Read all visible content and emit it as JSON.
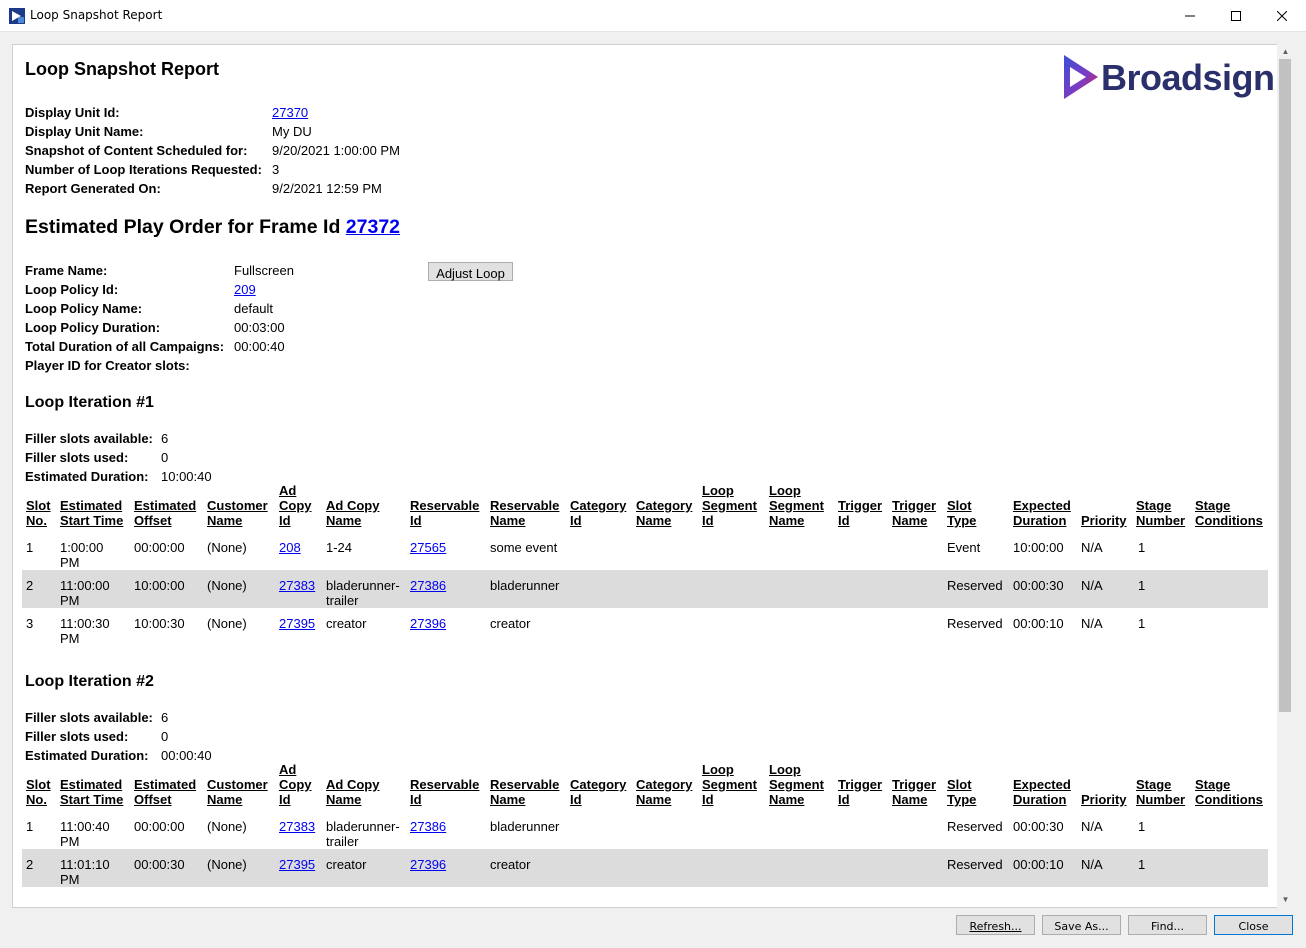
{
  "window": {
    "title": "Loop Snapshot Report",
    "minimize": "–",
    "maximize": "☐",
    "close": "✕"
  },
  "report": {
    "title": "Loop Snapshot Report",
    "brand": "Broadsign",
    "fields": [
      {
        "label": "Display Unit Id:",
        "value": "27370",
        "link": true
      },
      {
        "label": "Display Unit Name:",
        "value": "My DU",
        "link": false
      },
      {
        "label": "Snapshot of Content Scheduled for:",
        "value": "9/20/2021 1:00:00 PM",
        "link": false
      },
      {
        "label": "Number of Loop Iterations Requested:",
        "value": "3",
        "link": false
      },
      {
        "label": "Report Generated On:",
        "value": "9/2/2021 12:59 PM",
        "link": false
      }
    ]
  },
  "frame": {
    "heading_prefix": "Estimated Play Order for Frame Id",
    "frame_id": "27372",
    "adjust_button": "Adjust Loop",
    "fields": [
      {
        "label": "Frame Name:",
        "value": "Fullscreen",
        "link": false
      },
      {
        "label": "Loop Policy Id:",
        "value": "209",
        "link": true
      },
      {
        "label": "Loop Policy Name:",
        "value": "default",
        "link": false
      },
      {
        "label": "Loop Policy Duration:",
        "value": "00:03:00",
        "link": false
      },
      {
        "label": "Total Duration of all Campaigns:",
        "value": "00:00:40",
        "link": false
      },
      {
        "label": "Player ID for Creator slots:",
        "value": "",
        "link": false
      }
    ]
  },
  "columns": [
    [
      "Slot",
      "No."
    ],
    [
      "Estimated",
      "Start Time"
    ],
    [
      "Estimated",
      "Offset"
    ],
    [
      "Customer",
      "Name"
    ],
    [
      "Ad",
      "Copy",
      "Id"
    ],
    [
      "Ad Copy",
      "Name"
    ],
    [
      "Reservable",
      "Id"
    ],
    [
      "Reservable",
      "Name"
    ],
    [
      "Category",
      "Id"
    ],
    [
      "Category",
      "Name"
    ],
    [
      "Loop",
      "Segment",
      "Id"
    ],
    [
      "Loop",
      "Segment",
      "Name"
    ],
    [
      "Trigger",
      "Id"
    ],
    [
      "Trigger",
      "Name"
    ],
    [
      "Slot",
      "Type"
    ],
    [
      "Expected",
      "Duration"
    ],
    [
      "Priority"
    ],
    [
      "Stage",
      "Number"
    ],
    [
      "Stage",
      "Conditions"
    ]
  ],
  "iterations": [
    {
      "title": "Loop Iteration #1",
      "stats": [
        {
          "label": "Filler slots available:",
          "value": "6"
        },
        {
          "label": "Filler slots used:",
          "value": "0"
        },
        {
          "label": "Estimated Duration:",
          "value": "10:00:40"
        }
      ],
      "rows": [
        {
          "slot": "1",
          "start": [
            "1:00:00",
            "PM"
          ],
          "offset": "00:00:00",
          "customer": "(None)",
          "adcopy_id": "208",
          "adcopy_name": [
            "1-24"
          ],
          "res_id": "27565",
          "res_name": "some event",
          "slot_type": "Event",
          "duration": "10:00:00",
          "priority": "N/A",
          "stage": "1"
        },
        {
          "slot": "2",
          "start": [
            "11:00:00",
            "PM"
          ],
          "offset": "10:00:00",
          "customer": "(None)",
          "adcopy_id": "27383",
          "adcopy_name": [
            "bladerunner-",
            "trailer"
          ],
          "res_id": "27386",
          "res_name": "bladerunner",
          "slot_type": "Reserved",
          "duration": "00:00:30",
          "priority": "N/A",
          "stage": "1"
        },
        {
          "slot": "3",
          "start": [
            "11:00:30",
            "PM"
          ],
          "offset": "10:00:30",
          "customer": "(None)",
          "adcopy_id": "27395",
          "adcopy_name": [
            "creator"
          ],
          "res_id": "27396",
          "res_name": "creator",
          "slot_type": "Reserved",
          "duration": "00:00:10",
          "priority": "N/A",
          "stage": "1"
        }
      ]
    },
    {
      "title": "Loop Iteration #2",
      "stats": [
        {
          "label": "Filler slots available:",
          "value": "6"
        },
        {
          "label": "Filler slots used:",
          "value": "0"
        },
        {
          "label": "Estimated Duration:",
          "value": "00:00:40"
        }
      ],
      "rows": [
        {
          "slot": "1",
          "start": [
            "11:00:40",
            "PM"
          ],
          "offset": "00:00:00",
          "customer": "(None)",
          "adcopy_id": "27383",
          "adcopy_name": [
            "bladerunner-",
            "trailer"
          ],
          "res_id": "27386",
          "res_name": "bladerunner",
          "slot_type": "Reserved",
          "duration": "00:00:30",
          "priority": "N/A",
          "stage": "1"
        },
        {
          "slot": "2",
          "start": [
            "11:01:10",
            "PM"
          ],
          "offset": "00:00:30",
          "customer": "(None)",
          "adcopy_id": "27395",
          "adcopy_name": [
            "creator"
          ],
          "res_id": "27396",
          "res_name": "creator",
          "slot_type": "Reserved",
          "duration": "00:00:10",
          "priority": "N/A",
          "stage": "1"
        }
      ]
    }
  ],
  "buttons": {
    "refresh": "Refresh...",
    "save_as": "Save As...",
    "find": "Find...",
    "close": "Close"
  },
  "colors": {
    "link": "#0000ee",
    "brand_text": "#2b2f6b",
    "row_highlight": "#dcdcdc"
  }
}
